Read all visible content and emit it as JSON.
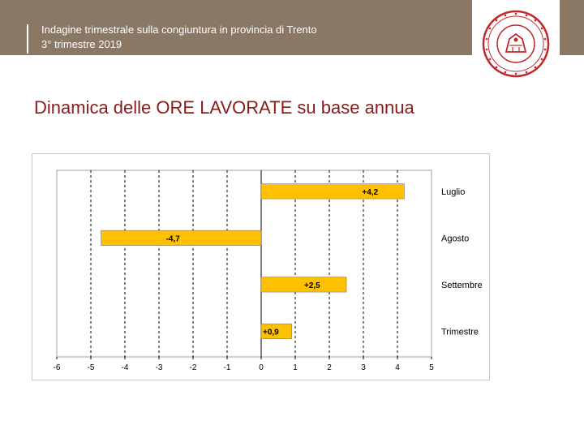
{
  "header": {
    "line1": "Indagine trimestrale sulla congiuntura in provincia di Trento",
    "line2": "3° trimestre 2019",
    "background": "#8a7864"
  },
  "logo": {
    "icon": "seal-icon",
    "seal_text": "CAMERA DI COMMERCIO INDUSTRIA ARTIGIANATO E AGRICOLTURA TRENTO",
    "color": "#c0282d"
  },
  "title": "Dinamica delle ORE LAVORATE su base annua",
  "title_color": "#8b1a1a",
  "chart_data": {
    "type": "bar",
    "orientation": "horizontal",
    "categories": [
      "Luglio",
      "Agosto",
      "Settembre",
      "Trimestre"
    ],
    "values": [
      4.2,
      -4.7,
      2.5,
      0.9
    ],
    "data_labels": [
      "+4,2",
      "-4,7",
      "+2,5",
      "+0,9"
    ],
    "xlim": [
      -6,
      5
    ],
    "xticks": [
      -6,
      -5,
      -4,
      -3,
      -2,
      -1,
      0,
      1,
      2,
      3,
      4,
      5
    ],
    "xtick_labels": [
      "-6",
      "-5",
      "-4",
      "-3",
      "-2",
      "-1",
      "0",
      "1",
      "2",
      "3",
      "4",
      "5"
    ],
    "grid": "vertical dashed",
    "bar_color": "#ffc000",
    "title": "",
    "xlabel": "",
    "ylabel": ""
  }
}
